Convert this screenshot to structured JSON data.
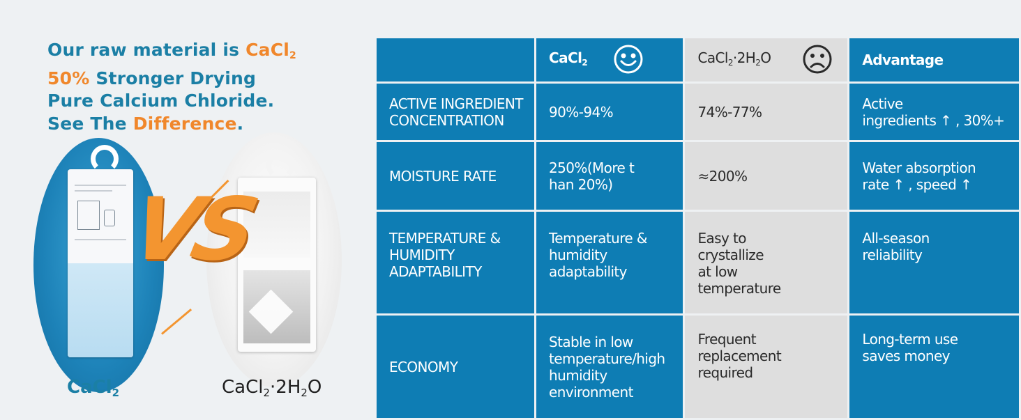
{
  "headline": {
    "line1_prefix": "Our raw material is ",
    "line1_formula": "CaCl",
    "line1_formula_sub": "2",
    "line2_highlight": "50%",
    "line2_rest": " Stronger Drying",
    "line3": "Pure Calcium Chloride.",
    "line4_prefix": "See The ",
    "line4_highlight": "Difference",
    "line4_suffix": "."
  },
  "products": {
    "left": {
      "formula": "CaCl",
      "sub": "2",
      "icon": "white-hanging-bag-icon"
    },
    "right": {
      "formula_a": "CaCl",
      "sub_a": "2",
      "formula_b": "·2H",
      "sub_b": "2",
      "formula_c": "O",
      "icon": "gray-hanging-bag-icon"
    },
    "vs_text": "VS"
  },
  "table": {
    "headers": {
      "col1": {
        "formula": "CaCl",
        "sub": "2",
        "icon": "smiley-face-icon"
      },
      "col2": {
        "formula_a": "CaCl",
        "sub_a": "2",
        "formula_b": "·2H",
        "sub_b": "2",
        "formula_c": "O",
        "icon": "sad-face-icon"
      },
      "col3": "Advantage"
    },
    "rows": [
      {
        "label_1": "ACTIVE INGREDIENT",
        "label_2": "CONCENTRATION",
        "cacl2_1": "90%-94%",
        "hydrate_1": "74%-77%",
        "adv_1": "Active",
        "adv_2": "ingredients ↑ , 30%+"
      },
      {
        "label_1": "MOISTURE RATE",
        "cacl2_1": "250%(More t",
        "cacl2_2": "han 20%)",
        "hydrate_1": "≈200%",
        "adv_1": "Water absorption",
        "adv_2": "rate ↑ , speed ↑"
      },
      {
        "label_1": "TEMPERATURE &",
        "label_2": "HUMIDITY",
        "label_3": "ADAPTABILITY",
        "cacl2_1": "Temperature &",
        "cacl2_2": "humidity",
        "cacl2_3": "adaptability",
        "hydrate_1": "Easy to",
        "hydrate_2": "crystallize",
        "hydrate_3": "at low",
        "hydrate_4": "temperature",
        "adv_1": "All-season",
        "adv_2": "reliability"
      },
      {
        "label_1": "ECONOMY",
        "cacl2_1": "Stable in low",
        "cacl2_2": "temperature/high",
        "cacl2_3": "humidity",
        "cacl2_4": "environment",
        "hydrate_1": "Frequent",
        "hydrate_2": "replacement",
        "hydrate_3": "required",
        "adv_1": "Long-term use",
        "adv_2": "saves money"
      }
    ]
  },
  "colors": {
    "blue": "#0e7db4",
    "headline_blue": "#1b7fa5",
    "orange": "#f0872b",
    "gray_cell": "#dedede",
    "background": "#eef1f3"
  }
}
